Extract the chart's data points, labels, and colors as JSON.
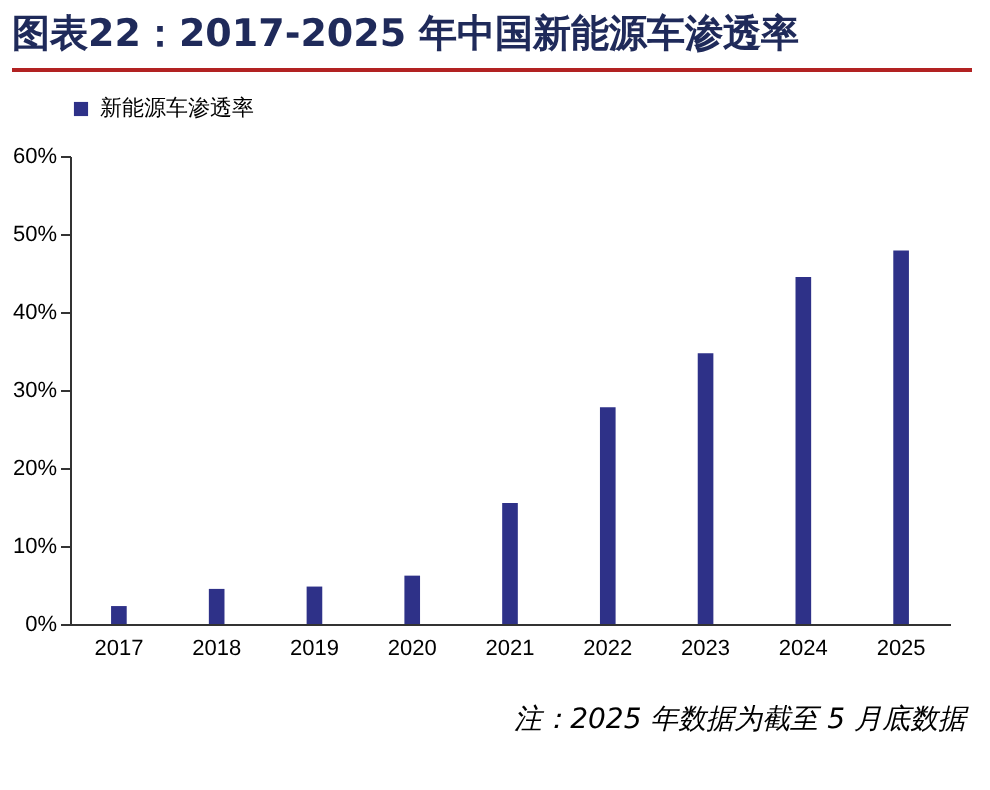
{
  "chart_data": {
    "type": "bar",
    "title": "图表22：2017-2025 年中国新能源车渗透率",
    "categories": [
      "2017",
      "2018",
      "2019",
      "2020",
      "2021",
      "2022",
      "2023",
      "2024",
      "2025"
    ],
    "series": [
      {
        "name": "新能源车渗透率",
        "color": "#2e3188",
        "values": [
          2.3,
          4.5,
          4.8,
          6.2,
          15.5,
          27.8,
          34.7,
          44.5,
          47.9
        ]
      }
    ],
    "ylim": [
      0,
      60
    ],
    "yticks": [
      {
        "value": 0,
        "label": "0%"
      },
      {
        "value": 10,
        "label": "10%"
      },
      {
        "value": 20,
        "label": "20%"
      },
      {
        "value": 30,
        "label": "30%"
      },
      {
        "value": 40,
        "label": "40%"
      },
      {
        "value": 50,
        "label": "50%"
      },
      {
        "value": 60,
        "label": "60%"
      }
    ],
    "grid": false,
    "legend": "top",
    "annotations": [
      "注：2025 年数据为截至 5 月底数据"
    ]
  }
}
